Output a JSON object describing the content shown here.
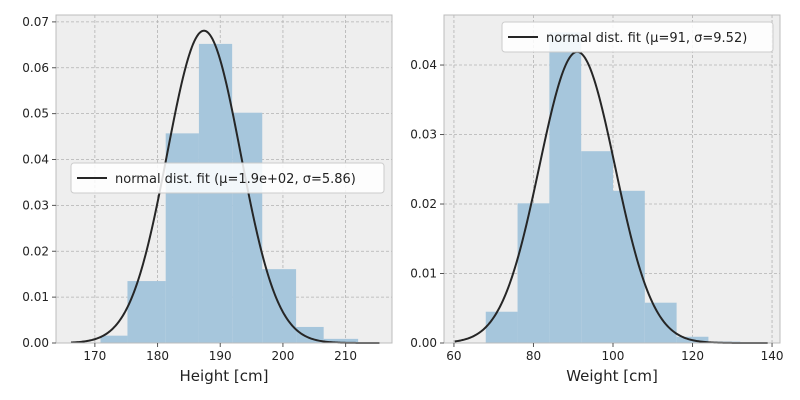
{
  "colors": {
    "panel_bg": "#eeeeee",
    "grid": "#b2b2b2",
    "bar": "#a6c6dc",
    "fit_line": "#262626",
    "spine": "#bcbcbc",
    "legend_bg": "#ffffff"
  },
  "chart_data": [
    {
      "type": "bar",
      "title": "",
      "xlabel": "Height [cm]",
      "ylabel": "",
      "xlim": [
        163.8,
        217.4
      ],
      "ylim": [
        0,
        0.0715
      ],
      "xticks": [
        170,
        180,
        190,
        200,
        210
      ],
      "yticks": [
        0.0,
        0.01,
        0.02,
        0.03,
        0.04,
        0.05,
        0.06,
        0.07
      ],
      "ytick_labels": [
        "0.00",
        "0.01",
        "0.02",
        "0.03",
        "0.04",
        "0.05",
        "0.06",
        "0.07"
      ],
      "grid": true,
      "bins": [
        {
          "x0": 170.9,
          "x1": 175.2,
          "value": 0.0016
        },
        {
          "x0": 175.2,
          "x1": 181.3,
          "value": 0.0135
        },
        {
          "x0": 181.3,
          "x1": 186.6,
          "value": 0.0457
        },
        {
          "x0": 186.6,
          "x1": 191.9,
          "value": 0.0652
        },
        {
          "x0": 191.9,
          "x1": 196.7,
          "value": 0.0502
        },
        {
          "x0": 196.7,
          "x1": 202.1,
          "value": 0.0161
        },
        {
          "x0": 202.1,
          "x1": 206.5,
          "value": 0.0035
        },
        {
          "x0": 206.5,
          "x1": 212.0,
          "value": 0.0009
        }
      ],
      "fit": {
        "mu": 187.4,
        "sigma": 5.86,
        "x_range": [
          166.2,
          215.4
        ]
      },
      "legend": {
        "label": "normal dist. fit (μ=1.9e+02, σ=5.86)",
        "placement": "center-left"
      }
    },
    {
      "type": "bar",
      "title": "",
      "xlabel": "Weight [cm]",
      "ylabel": "",
      "xlim": [
        57.5,
        142.0
      ],
      "ylim": [
        0,
        0.0472
      ],
      "xticks": [
        60,
        80,
        100,
        120,
        140
      ],
      "yticks": [
        0.0,
        0.01,
        0.02,
        0.03,
        0.04
      ],
      "ytick_labels": [
        "0.00",
        "0.01",
        "0.02",
        "0.03",
        "0.04"
      ],
      "grid": true,
      "bins": [
        {
          "x0": 68.0,
          "x1": 76.0,
          "value": 0.0045
        },
        {
          "x0": 76.0,
          "x1": 84.0,
          "value": 0.0201
        },
        {
          "x0": 84.0,
          "x1": 92.0,
          "value": 0.0447
        },
        {
          "x0": 92.0,
          "x1": 100.0,
          "value": 0.0276
        },
        {
          "x0": 100.0,
          "x1": 108.0,
          "value": 0.0219
        },
        {
          "x0": 108.0,
          "x1": 116.0,
          "value": 0.0058
        },
        {
          "x0": 116.0,
          "x1": 124.0,
          "value": 0.0009
        },
        {
          "x0": 124.0,
          "x1": 132.0,
          "value": 0.0002
        }
      ],
      "fit": {
        "mu": 91,
        "sigma": 9.52,
        "x_range": [
          60.2,
          138.9
        ]
      },
      "legend": {
        "label": "normal dist. fit (μ=91, σ=9.52)",
        "placement": "top-right"
      }
    }
  ]
}
